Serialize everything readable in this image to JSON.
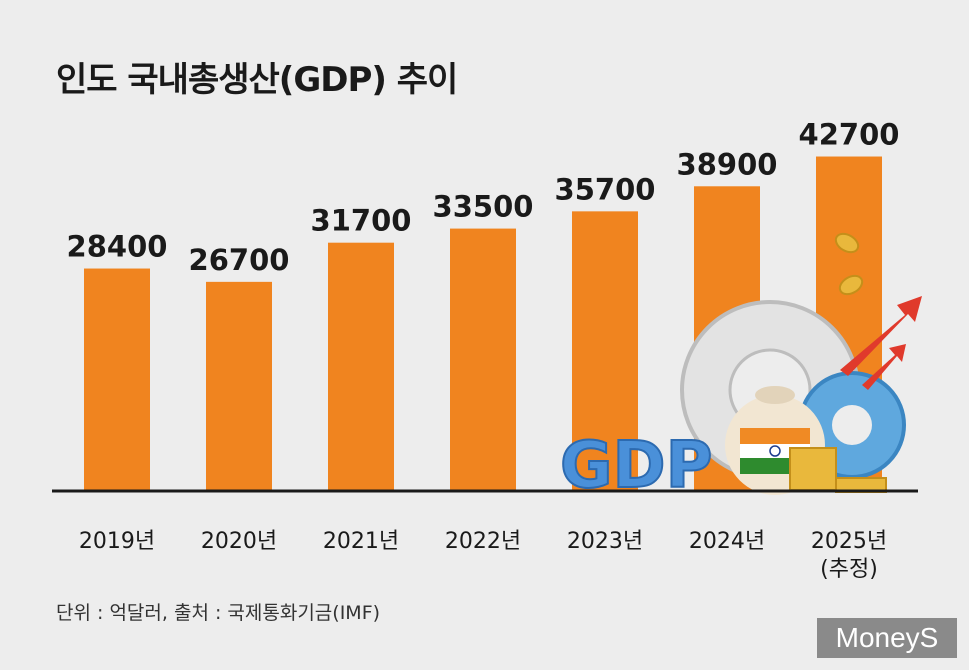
{
  "header": {
    "title": "인도 국내총생산(GDP) 추이"
  },
  "chart_data": {
    "type": "bar",
    "categories": [
      "2019년",
      "2020년",
      "2021년",
      "2022년",
      "2023년",
      "2024년",
      "2025년"
    ],
    "category_notes": [
      "",
      "",
      "",
      "",
      "",
      "",
      "(추정)"
    ],
    "values": [
      28400,
      26700,
      31700,
      33500,
      35700,
      38900,
      42700
    ],
    "ylim": [
      0,
      48000
    ],
    "bar_color": "#f0841f",
    "grid": false,
    "legend": "none"
  },
  "footer": {
    "note": "단위 : 억달러, 출처 : 국제통화기금(IMF)"
  },
  "branding": {
    "logo_text": "MoneyS"
  },
  "illustration": {
    "graphic_text": "GDP"
  }
}
